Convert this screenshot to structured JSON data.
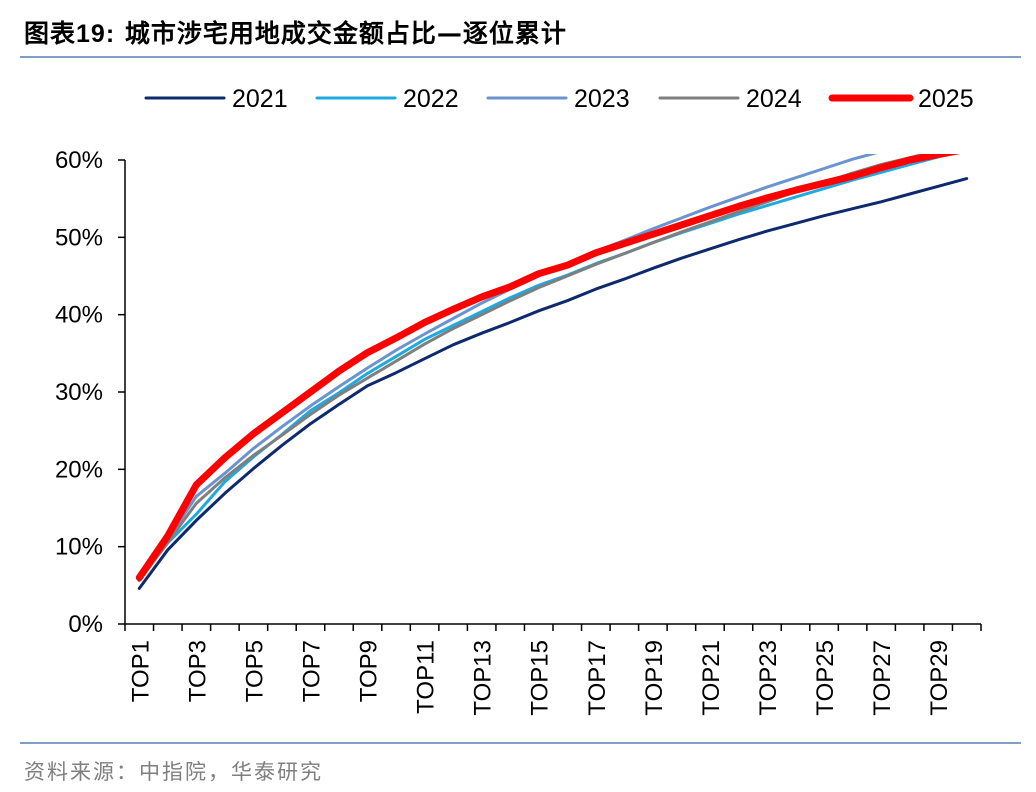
{
  "header": {
    "title_prefix": "图表",
    "title_number": "19:",
    "title_text": "城市涉宅用地成交金额占比—逐位累计"
  },
  "footer": {
    "source": "资料来源：中指院，华泰研究"
  },
  "colors": {
    "rule": "#7f9fc6"
  },
  "chart_data": {
    "type": "line",
    "title": "",
    "xlabel": "",
    "ylabel": "",
    "ylim": [
      0,
      60
    ],
    "y_ticks": [
      "0%",
      "10%",
      "20%",
      "30%",
      "40%",
      "50%",
      "60%"
    ],
    "y_tick_values": [
      0,
      10,
      20,
      30,
      40,
      50,
      60
    ],
    "x_tick_labels": [
      "TOP1",
      "TOP3",
      "TOP5",
      "TOP7",
      "TOP9",
      "TOP11",
      "TOP13",
      "TOP15",
      "TOP17",
      "TOP19",
      "TOP21",
      "TOP23",
      "TOP25",
      "TOP27",
      "TOP29"
    ],
    "categories": [
      "TOP1",
      "TOP2",
      "TOP3",
      "TOP4",
      "TOP5",
      "TOP6",
      "TOP7",
      "TOP8",
      "TOP9",
      "TOP10",
      "TOP11",
      "TOP12",
      "TOP13",
      "TOP14",
      "TOP15",
      "TOP16",
      "TOP17",
      "TOP18",
      "TOP19",
      "TOP20",
      "TOP21",
      "TOP22",
      "TOP23",
      "TOP24",
      "TOP25",
      "TOP26",
      "TOP27",
      "TOP28",
      "TOP29",
      "TOP30"
    ],
    "legend_position": "top",
    "grid": false,
    "series": [
      {
        "name": "2021",
        "color": "#0e2a6e",
        "width": 3,
        "values": [
          4.6,
          9.6,
          13.4,
          16.9,
          20.1,
          23.1,
          25.9,
          28.4,
          30.8,
          32.5,
          34.3,
          36.1,
          37.6,
          39.0,
          40.5,
          41.8,
          43.3,
          44.6,
          46.0,
          47.3,
          48.5,
          49.7,
          50.8,
          51.8,
          52.8,
          53.7,
          54.6,
          55.6,
          56.6,
          57.6
        ]
      },
      {
        "name": "2022",
        "color": "#1fa9e1",
        "width": 3,
        "values": [
          5.7,
          10.5,
          14.2,
          18.4,
          21.6,
          24.5,
          27.6,
          29.9,
          32.4,
          34.6,
          36.8,
          38.6,
          40.4,
          42.2,
          43.8,
          45.1,
          46.6,
          47.9,
          49.3,
          50.6,
          51.8,
          53.0,
          54.1,
          55.2,
          56.3,
          57.4,
          58.4,
          59.4,
          60.4,
          61.4
        ]
      },
      {
        "name": "2023",
        "color": "#6b93cf",
        "width": 3,
        "values": [
          6.1,
          11.0,
          16.5,
          19.5,
          22.7,
          25.5,
          28.2,
          30.7,
          33.1,
          35.4,
          37.5,
          39.5,
          41.5,
          43.3,
          45.0,
          46.6,
          48.2,
          49.6,
          51.1,
          52.5,
          53.9,
          55.2,
          56.5,
          57.7,
          58.9,
          60.1,
          61.1,
          62.1,
          63.1,
          64.1
        ]
      },
      {
        "name": "2024",
        "color": "#7f7f7f",
        "width": 3,
        "values": [
          5.6,
          10.6,
          15.6,
          18.9,
          21.8,
          24.4,
          27.1,
          29.6,
          31.8,
          34.0,
          36.2,
          38.2,
          40.0,
          41.8,
          43.5,
          45.0,
          46.5,
          47.9,
          49.3,
          50.7,
          52.0,
          53.3,
          54.6,
          55.9,
          57.1,
          58.3,
          59.4,
          60.3,
          61.2,
          62.1
        ]
      },
      {
        "name": "2025",
        "color": "#ff0000",
        "width": 7,
        "values": [
          6.0,
          11.4,
          18.0,
          21.5,
          24.6,
          27.3,
          30.0,
          32.7,
          35.1,
          37.0,
          39.0,
          40.7,
          42.3,
          43.6,
          45.3,
          46.4,
          48.0,
          49.2,
          50.4,
          51.6,
          52.8,
          54.0,
          55.1,
          56.1,
          57.0,
          57.9,
          59.0,
          60.0,
          60.7,
          61.4
        ]
      }
    ]
  }
}
